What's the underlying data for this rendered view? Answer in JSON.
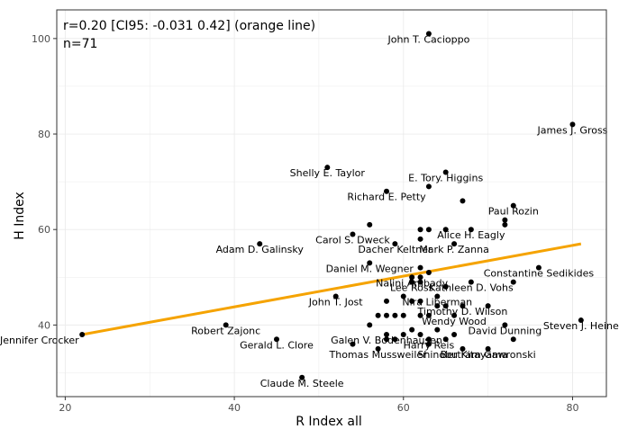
{
  "chart_data": {
    "type": "scatter",
    "title": "",
    "xlabel": "R Index all",
    "ylabel": "H Index",
    "xlim": [
      19,
      84
    ],
    "ylim": [
      25,
      106
    ],
    "xticks": [
      20,
      40,
      60,
      80
    ],
    "yticks": [
      40,
      60,
      80,
      100
    ],
    "grid": true,
    "annotations": [
      "r=0.20 [CI95: -0.031 0.42] (orange line)",
      "n=71"
    ],
    "trend_line": {
      "color": "#f5a300",
      "x": [
        22,
        81
      ],
      "y": [
        38.0,
        57.0
      ]
    },
    "points": [
      {
        "x": 22,
        "y": 38,
        "label": "Jennifer Crocker"
      },
      {
        "x": 39,
        "y": 40,
        "label": "Robert Zajonc"
      },
      {
        "x": 43,
        "y": 57,
        "label": "Adam D. Galinsky"
      },
      {
        "x": 45,
        "y": 37,
        "label": "Gerald L. Clore"
      },
      {
        "x": 48,
        "y": 29,
        "label": "Claude M. Steele"
      },
      {
        "x": 51,
        "y": 73,
        "label": "Shelly E. Taylor"
      },
      {
        "x": 52,
        "y": 46,
        "label": "John T. Jost"
      },
      {
        "x": 54,
        "y": 36,
        "label": ""
      },
      {
        "x": 54,
        "y": 59,
        "label": "Carol S. Dweck"
      },
      {
        "x": 56,
        "y": 61,
        "label": ""
      },
      {
        "x": 56,
        "y": 53,
        "label": "Daniel M. Wegner"
      },
      {
        "x": 56,
        "y": 40,
        "label": ""
      },
      {
        "x": 57,
        "y": 35,
        "label": "Thomas Mussweiler"
      },
      {
        "x": 57,
        "y": 42,
        "label": ""
      },
      {
        "x": 58,
        "y": 68,
        "label": "Richard E. Petty"
      },
      {
        "x": 58,
        "y": 45,
        "label": ""
      },
      {
        "x": 58,
        "y": 42,
        "label": ""
      },
      {
        "x": 58,
        "y": 38,
        "label": "Galen V. Bodenhausen"
      },
      {
        "x": 58,
        "y": 37,
        "label": ""
      },
      {
        "x": 59,
        "y": 57,
        "label": "Dacher Keltner"
      },
      {
        "x": 59,
        "y": 42,
        "label": ""
      },
      {
        "x": 59,
        "y": 37,
        "label": ""
      },
      {
        "x": 60,
        "y": 46,
        "label": ""
      },
      {
        "x": 60,
        "y": 42,
        "label": ""
      },
      {
        "x": 61,
        "y": 50,
        "label": "Nalini Ambady"
      },
      {
        "x": 61,
        "y": 49,
        "label": "Lee Ross"
      },
      {
        "x": 61,
        "y": 39,
        "label": ""
      },
      {
        "x": 62,
        "y": 60,
        "label": ""
      },
      {
        "x": 62,
        "y": 58,
        "label": ""
      },
      {
        "x": 62,
        "y": 52,
        "label": ""
      },
      {
        "x": 62,
        "y": 50,
        "label": ""
      },
      {
        "x": 62,
        "y": 49,
        "label": ""
      },
      {
        "x": 62,
        "y": 45,
        "label": ""
      },
      {
        "x": 62,
        "y": 42,
        "label": ""
      },
      {
        "x": 62,
        "y": 38,
        "label": ""
      },
      {
        "x": 63,
        "y": 101,
        "label": "John T. Cacioppo"
      },
      {
        "x": 63,
        "y": 69,
        "label": ""
      },
      {
        "x": 63,
        "y": 60,
        "label": ""
      },
      {
        "x": 63,
        "y": 51,
        "label": ""
      },
      {
        "x": 63,
        "y": 42,
        "label": ""
      },
      {
        "x": 63,
        "y": 37,
        "label": "Harry Reis"
      },
      {
        "x": 63,
        "y": 36,
        "label": ""
      },
      {
        "x": 64,
        "y": 46,
        "label": "Nira Liberman"
      },
      {
        "x": 65,
        "y": 72,
        "label": "E. Tory. Higgins"
      },
      {
        "x": 65,
        "y": 60,
        "label": ""
      },
      {
        "x": 65,
        "y": 48,
        "label": ""
      },
      {
        "x": 65,
        "y": 44,
        "label": ""
      },
      {
        "x": 66,
        "y": 57,
        "label": "Mark P. Zanna"
      },
      {
        "x": 66,
        "y": 42,
        "label": "Wendy Wood"
      },
      {
        "x": 66,
        "y": 38,
        "label": ""
      },
      {
        "x": 67,
        "y": 66,
        "label": ""
      },
      {
        "x": 67,
        "y": 44,
        "label": "Timothy D. Wilson"
      },
      {
        "x": 67,
        "y": 35,
        "label": "Shinobu Kitayama"
      },
      {
        "x": 68,
        "y": 60,
        "label": "Alice H. Eagly"
      },
      {
        "x": 68,
        "y": 49,
        "label": "Kathleen D. Vohs"
      },
      {
        "x": 70,
        "y": 44,
        "label": ""
      },
      {
        "x": 70,
        "y": 35,
        "label": "Bertram Gawronski"
      },
      {
        "x": 72,
        "y": 62,
        "label": ""
      },
      {
        "x": 72,
        "y": 61,
        "label": ""
      },
      {
        "x": 72,
        "y": 40,
        "label": "David Dunning"
      },
      {
        "x": 73,
        "y": 65,
        "label": "Paul Rozin"
      },
      {
        "x": 73,
        "y": 49,
        "label": ""
      },
      {
        "x": 73,
        "y": 37,
        "label": ""
      },
      {
        "x": 76,
        "y": 52,
        "label": "Constantine Sedikides"
      },
      {
        "x": 80,
        "y": 82,
        "label": "James J. Gross"
      },
      {
        "x": 81,
        "y": 41,
        "label": "Steven J. Heine"
      },
      {
        "x": 64,
        "y": 39,
        "label": ""
      },
      {
        "x": 60,
        "y": 38,
        "label": ""
      },
      {
        "x": 65,
        "y": 37,
        "label": ""
      },
      {
        "x": 61,
        "y": 45,
        "label": ""
      },
      {
        "x": 64,
        "y": 44,
        "label": ""
      }
    ]
  }
}
